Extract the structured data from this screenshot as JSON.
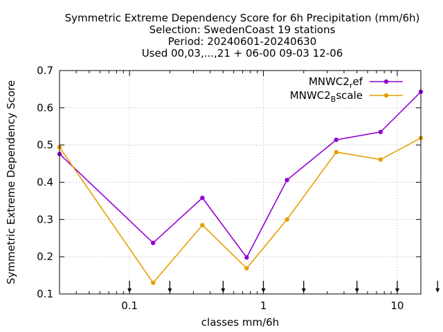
{
  "chart_data": {
    "type": "line",
    "title_lines": [
      "Symmetric Extreme Dependency Score  for 6h Precipitation (mm/6h)",
      "Selection: SwedenCoast     19 stations",
      "Period: 20240601-20240630",
      "Used 00,03,...,21 + 06-00 09-03 12-06"
    ],
    "xlabel": "classes mm/6h",
    "ylabel": "Symmetric Extreme Dependency Score",
    "x_scale": "log",
    "xlim": [
      0.03,
      15
    ],
    "ylim": [
      0.1,
      0.7
    ],
    "x_ticks": [
      0.1,
      1,
      10
    ],
    "x_tick_labels": [
      "0.1",
      "1",
      "10"
    ],
    "y_ticks": [
      0.1,
      0.2,
      0.3,
      0.4,
      0.5,
      0.6,
      0.7
    ],
    "y_tick_labels": [
      "0.1",
      "0.2",
      "0.3",
      "0.4",
      "0.5",
      "0.6",
      "0.7"
    ],
    "grid": true,
    "legend_position": "top-right",
    "threshold_arrows": [
      0.1,
      0.2,
      0.5,
      1,
      2,
      5,
      10,
      20
    ],
    "x": [
      0.03,
      0.15,
      0.35,
      0.75,
      1.5,
      3.5,
      7.5,
      15
    ],
    "series": [
      {
        "name_base": "MNWC2",
        "name_sub": "r",
        "name_rest": "ef",
        "color": "#9400d3",
        "values": [
          0.476,
          0.237,
          0.358,
          0.198,
          0.406,
          0.514,
          0.535,
          0.643
        ]
      },
      {
        "name_base": "MNWC2",
        "name_sub": "B",
        "name_rest": "scale",
        "color": "#e69f00",
        "values": [
          0.494,
          0.13,
          0.285,
          0.169,
          0.3,
          0.481,
          0.461,
          0.519
        ]
      }
    ]
  }
}
